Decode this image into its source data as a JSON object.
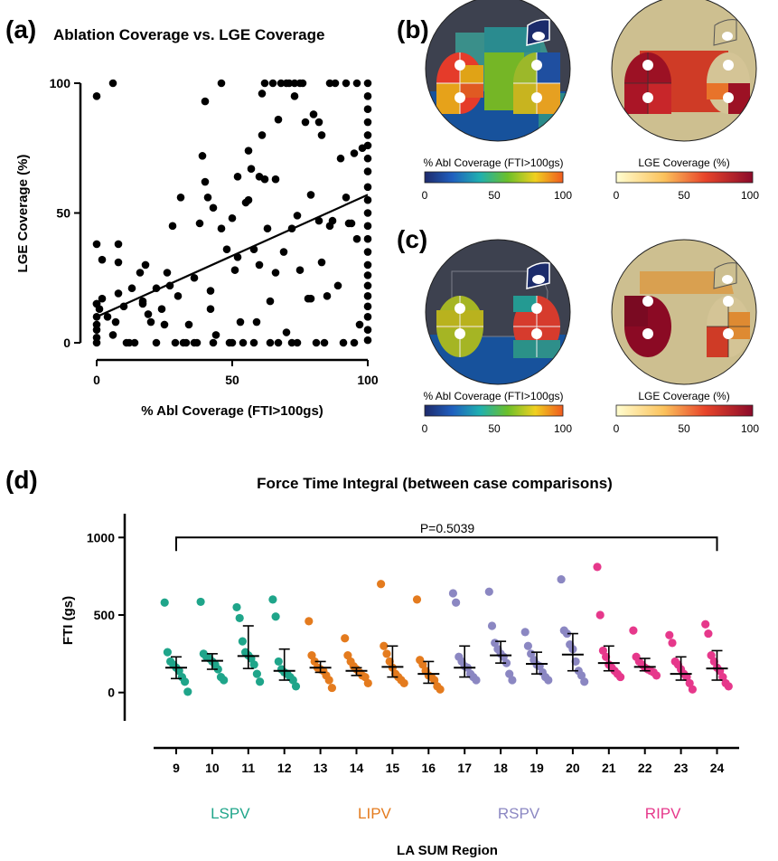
{
  "panel_labels": {
    "a": "(a)",
    "b": "(b)",
    "c": "(c)",
    "d": "(d)"
  },
  "colors": {
    "points": "#000000",
    "LSPV": "#1fa58a",
    "LIPV": "#e47b1e",
    "RSPV": "#8b87c2",
    "RIPV": "#e6388b",
    "map_background": "#3d414f",
    "map_bottom": "#17529c",
    "lge_background": "#cdbf90"
  },
  "colorbars": {
    "abl": {
      "label": "% Abl Coverage (FTI>100gs)",
      "ticks": [
        "0",
        "50",
        "100"
      ],
      "colormap": "jet"
    },
    "lge": {
      "label": "LGE Coverage (%)",
      "ticks": [
        "0",
        "50",
        "100"
      ],
      "colormap": "ylorrd"
    }
  },
  "chart_data": [
    {
      "type": "scatter",
      "title": "Ablation Coverage vs. LGE Coverage",
      "xlabel": "% Abl Coverage (FTI>100gs)",
      "ylabel": "LGE Coverage (%)",
      "xlim": [
        0,
        100
      ],
      "ylim": [
        0,
        100
      ],
      "xticks": [
        "0",
        "50",
        "100"
      ],
      "yticks": [
        "0",
        "50",
        "100"
      ],
      "grid": false,
      "fit_line": {
        "x": [
          0,
          100
        ],
        "y": [
          10,
          57
        ]
      },
      "points": [
        [
          0,
          95
        ],
        [
          6,
          100
        ],
        [
          0,
          38
        ],
        [
          8,
          38
        ],
        [
          2,
          32
        ],
        [
          8,
          31
        ],
        [
          0,
          15
        ],
        [
          1,
          13
        ],
        [
          0,
          10
        ],
        [
          0,
          7
        ],
        [
          0,
          5
        ],
        [
          0,
          2
        ],
        [
          0,
          0
        ],
        [
          0,
          15
        ],
        [
          2,
          17
        ],
        [
          4,
          10
        ],
        [
          6,
          3
        ],
        [
          7,
          8
        ],
        [
          8,
          19
        ],
        [
          10,
          14
        ],
        [
          11,
          0
        ],
        [
          12,
          0
        ],
        [
          13,
          21
        ],
        [
          14,
          0
        ],
        [
          16,
          27
        ],
        [
          17,
          16
        ],
        [
          17,
          15
        ],
        [
          18,
          30
        ],
        [
          19,
          11
        ],
        [
          20,
          8
        ],
        [
          22,
          0
        ],
        [
          22,
          21
        ],
        [
          24,
          13
        ],
        [
          25,
          7
        ],
        [
          26,
          27
        ],
        [
          27,
          22
        ],
        [
          28,
          45
        ],
        [
          29,
          0
        ],
        [
          30,
          18
        ],
        [
          31,
          56
        ],
        [
          32,
          0
        ],
        [
          33,
          0
        ],
        [
          34,
          7
        ],
        [
          36,
          25
        ],
        [
          36,
          0
        ],
        [
          37,
          0
        ],
        [
          38,
          46
        ],
        [
          39,
          72
        ],
        [
          40,
          93
        ],
        [
          40,
          62
        ],
        [
          41,
          56
        ],
        [
          42,
          20
        ],
        [
          43,
          52
        ],
        [
          42,
          13
        ],
        [
          43,
          0
        ],
        [
          44,
          3
        ],
        [
          46,
          100
        ],
        [
          46,
          44
        ],
        [
          48,
          36
        ],
        [
          49,
          0
        ],
        [
          50,
          48
        ],
        [
          50,
          0
        ],
        [
          51,
          28
        ],
        [
          52,
          64
        ],
        [
          52,
          33
        ],
        [
          53,
          8
        ],
        [
          54,
          0
        ],
        [
          55,
          54
        ],
        [
          56,
          74
        ],
        [
          56,
          55
        ],
        [
          57,
          67
        ],
        [
          58,
          0
        ],
        [
          58,
          36
        ],
        [
          59,
          8
        ],
        [
          60,
          30
        ],
        [
          60,
          64
        ],
        [
          61,
          80
        ],
        [
          61,
          96
        ],
        [
          62,
          63
        ],
        [
          62,
          100
        ],
        [
          63,
          44
        ],
        [
          64,
          0
        ],
        [
          64,
          16
        ],
        [
          65,
          100
        ],
        [
          66,
          63
        ],
        [
          66,
          27
        ],
        [
          67,
          86
        ],
        [
          67,
          0
        ],
        [
          68,
          100
        ],
        [
          69,
          35
        ],
        [
          70,
          100
        ],
        [
          70,
          4
        ],
        [
          71,
          100
        ],
        [
          72,
          44
        ],
        [
          72,
          0
        ],
        [
          73,
          100
        ],
        [
          73,
          95
        ],
        [
          74,
          0
        ],
        [
          74,
          49
        ],
        [
          75,
          100
        ],
        [
          75,
          28
        ],
        [
          76,
          100
        ],
        [
          77,
          85
        ],
        [
          78,
          17
        ],
        [
          79,
          17
        ],
        [
          79,
          57
        ],
        [
          80,
          88
        ],
        [
          81,
          0
        ],
        [
          82,
          85
        ],
        [
          82,
          47
        ],
        [
          83,
          80
        ],
        [
          83,
          31
        ],
        [
          84,
          0
        ],
        [
          85,
          18
        ],
        [
          86,
          100
        ],
        [
          86,
          45
        ],
        [
          87,
          47
        ],
        [
          88,
          100
        ],
        [
          89,
          22
        ],
        [
          90,
          71
        ],
        [
          91,
          0
        ],
        [
          92,
          100
        ],
        [
          92,
          56
        ],
        [
          93,
          46
        ],
        [
          94,
          46
        ],
        [
          95,
          0
        ],
        [
          95,
          73
        ],
        [
          96,
          40
        ],
        [
          96,
          100
        ],
        [
          97,
          7
        ],
        [
          98,
          75
        ],
        [
          100,
          100
        ],
        [
          100,
          95
        ],
        [
          100,
          90
        ],
        [
          100,
          85
        ],
        [
          100,
          80
        ],
        [
          100,
          76
        ],
        [
          100,
          71
        ],
        [
          100,
          66
        ],
        [
          100,
          60
        ],
        [
          100,
          55
        ],
        [
          100,
          50
        ],
        [
          100,
          45
        ],
        [
          100,
          40
        ],
        [
          100,
          35
        ],
        [
          100,
          30
        ],
        [
          100,
          26
        ],
        [
          100,
          22
        ],
        [
          100,
          18
        ],
        [
          100,
          14
        ],
        [
          100,
          10
        ],
        [
          100,
          5
        ],
        [
          100,
          1
        ]
      ]
    },
    {
      "type": "scatter",
      "title": "Force Time Integral (between case comparisons)",
      "xlabel": "LA SUM Region",
      "ylabel": "FTI (gs)",
      "ylim": [
        -200,
        1200
      ],
      "yticks": [
        "0",
        "500",
        "1000"
      ],
      "categories": [
        "9",
        "10",
        "11",
        "12",
        "13",
        "14",
        "15",
        "16",
        "17",
        "18",
        "19",
        "20",
        "21",
        "22",
        "23",
        "24"
      ],
      "groups": [
        {
          "name": "LSPV",
          "categories": [
            "9",
            "10",
            "11",
            "12"
          ]
        },
        {
          "name": "LIPV",
          "categories": [
            "13",
            "14",
            "15",
            "16"
          ]
        },
        {
          "name": "RSPV",
          "categories": [
            "17",
            "18",
            "19",
            "20"
          ]
        },
        {
          "name": "RIPV",
          "categories": [
            "21",
            "22",
            "23",
            "24"
          ]
        }
      ],
      "annotation": "P=0.5039",
      "series": [
        {
          "category": "9",
          "group": "LSPV",
          "values": [
            580,
            260,
            200,
            180,
            160,
            140,
            100,
            70,
            5
          ],
          "median": 160,
          "iqr": [
            90,
            230
          ]
        },
        {
          "category": "10",
          "group": "LSPV",
          "values": [
            585,
            250,
            230,
            220,
            200,
            180,
            150,
            100,
            80
          ],
          "median": 205,
          "iqr": [
            150,
            250
          ]
        },
        {
          "category": "11",
          "group": "LSPV",
          "values": [
            550,
            480,
            330,
            260,
            240,
            220,
            180,
            120,
            70
          ],
          "median": 235,
          "iqr": [
            155,
            430
          ]
        },
        {
          "category": "12",
          "group": "LSPV",
          "values": [
            600,
            490,
            200,
            150,
            130,
            120,
            100,
            80,
            40
          ],
          "median": 140,
          "iqr": [
            80,
            280
          ]
        },
        {
          "category": "13",
          "group": "LIPV",
          "values": [
            460,
            240,
            200,
            160,
            150,
            140,
            110,
            80,
            30
          ],
          "median": 160,
          "iqr": [
            130,
            200
          ]
        },
        {
          "category": "14",
          "group": "LIPV",
          "values": [
            350,
            240,
            200,
            170,
            150,
            130,
            110,
            100,
            60
          ],
          "median": 140,
          "iqr": [
            110,
            160
          ]
        },
        {
          "category": "15",
          "group": "LIPV",
          "values": [
            700,
            300,
            250,
            200,
            160,
            120,
            100,
            80,
            60
          ],
          "median": 165,
          "iqr": [
            100,
            300
          ]
        },
        {
          "category": "16",
          "group": "LIPV",
          "values": [
            600,
            210,
            180,
            140,
            110,
            100,
            80,
            40,
            20
          ],
          "median": 120,
          "iqr": [
            60,
            200
          ]
        },
        {
          "category": "17",
          "group": "RSPV",
          "values": [
            640,
            580,
            230,
            200,
            170,
            160,
            120,
            100,
            80
          ],
          "median": 160,
          "iqr": [
            100,
            300
          ]
        },
        {
          "category": "18",
          "group": "RSPV",
          "values": [
            650,
            430,
            320,
            280,
            250,
            230,
            190,
            120,
            80
          ],
          "median": 240,
          "iqr": [
            190,
            330
          ]
        },
        {
          "category": "19",
          "group": "RSPV",
          "values": [
            390,
            300,
            250,
            210,
            180,
            170,
            130,
            100,
            80
          ],
          "median": 185,
          "iqr": [
            120,
            260
          ]
        },
        {
          "category": "20",
          "group": "RSPV",
          "values": [
            730,
            400,
            380,
            310,
            280,
            200,
            140,
            110,
            70
          ],
          "median": 245,
          "iqr": [
            140,
            380
          ]
        },
        {
          "category": "21",
          "group": "RIPV",
          "values": [
            810,
            500,
            270,
            230,
            180,
            160,
            140,
            120,
            100
          ],
          "median": 190,
          "iqr": [
            140,
            300
          ]
        },
        {
          "category": "22",
          "group": "RIPV",
          "values": [
            400,
            230,
            200,
            180,
            160,
            150,
            140,
            130,
            110
          ],
          "median": 165,
          "iqr": [
            140,
            220
          ]
        },
        {
          "category": "23",
          "group": "RIPV",
          "values": [
            370,
            320,
            200,
            180,
            150,
            120,
            100,
            60,
            20
          ],
          "median": 120,
          "iqr": [
            80,
            230
          ]
        },
        {
          "category": "24",
          "group": "RIPV",
          "values": [
            440,
            380,
            240,
            200,
            160,
            140,
            100,
            60,
            40
          ],
          "median": 155,
          "iqr": [
            80,
            270
          ]
        }
      ]
    }
  ]
}
